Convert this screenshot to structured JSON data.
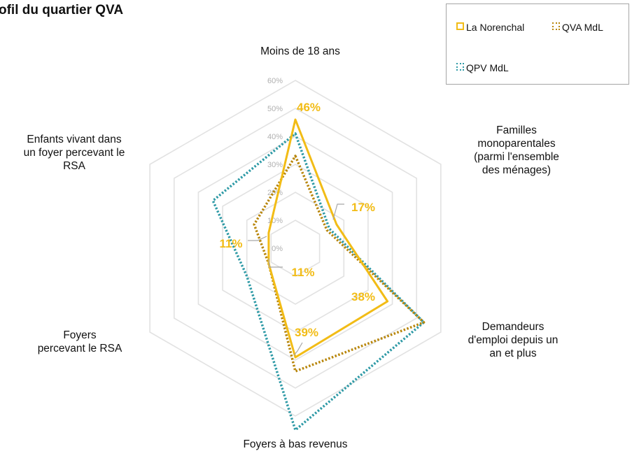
{
  "chart_data": {
    "type": "radar",
    "title": "ofil du quartier QVA",
    "axes": [
      [
        "Moins de 18 ans"
      ],
      [
        "Familles",
        "monoparentales",
        "(parmi l'ensemble",
        "des ménages)"
      ],
      [
        "Demandeurs",
        "d'emploi depuis un",
        "an et plus"
      ],
      [
        "Foyers à bas revenus"
      ],
      [
        "Foyers",
        "percevant le RSA"
      ],
      [
        "Enfants vivant dans",
        "un foyer percevant le",
        "RSA"
      ]
    ],
    "rlim": [
      0,
      60
    ],
    "ticks": [
      "0%",
      "10%",
      "20%",
      "30%",
      "40%",
      "50%",
      "60%"
    ],
    "series": [
      {
        "name": "La Norenchal",
        "color": "#f2bc16",
        "style": "solid",
        "values": [
          46,
          17,
          38,
          39,
          11,
          11
        ]
      },
      {
        "name": "QVA MdL",
        "color": "#b8860b",
        "style": "dotted",
        "values": [
          33,
          13,
          53,
          44,
          11,
          17
        ]
      },
      {
        "name": "QPV MdL",
        "color": "#2e9aa6",
        "style": "dotted",
        "values": [
          41,
          14,
          53,
          65,
          20,
          34
        ]
      }
    ],
    "data_labels": [
      "46%",
      "17%",
      "38%",
      "39%",
      "11%",
      "11%"
    ],
    "legend_position": "top-right"
  }
}
